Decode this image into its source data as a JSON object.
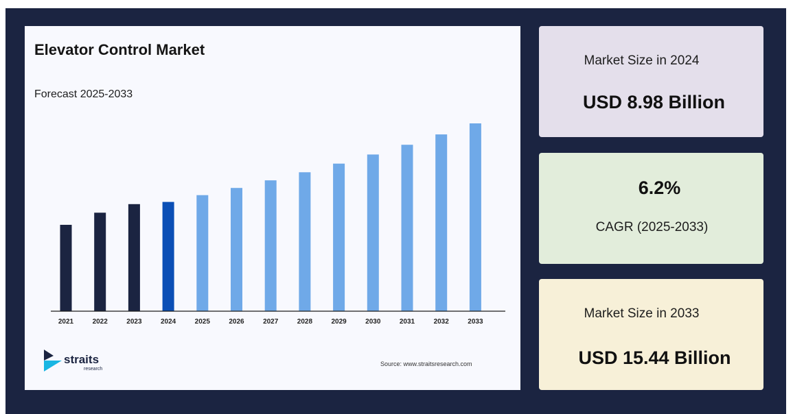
{
  "chart_data": {
    "type": "bar",
    "title": "Elevator Control Market",
    "subtitle": "Forecast 2025-2033",
    "categories": [
      "2021",
      "2022",
      "2023",
      "2024",
      "2025",
      "2026",
      "2027",
      "2028",
      "2029",
      "2030",
      "2031",
      "2032",
      "2033"
    ],
    "values": [
      7.1,
      8.1,
      8.8,
      8.98,
      9.54,
      10.13,
      10.76,
      11.42,
      12.13,
      12.88,
      13.68,
      14.53,
      15.44
    ],
    "historical_color": "#1b2441",
    "current_color": "#0b4fb6",
    "forecast_color": "#6fa9e8",
    "ylim": [
      0,
      15.44
    ],
    "grid": false
  },
  "branding": {
    "logo_text": "straits",
    "logo_sub": "research",
    "source": "Source: www.straitsresearch.com"
  },
  "cards": {
    "size_2024_label": "Market Size in 2024",
    "size_2024_value": "USD 8.98 Billion",
    "cagr_value": "6.2%",
    "cagr_label": "CAGR (2025-2033)",
    "size_2033_label": "Market Size in 2033",
    "size_2033_value": "USD 15.44 Billion"
  },
  "colors": {
    "frame": "#1b2441",
    "card_1": "#e4dfeb",
    "card_2": "#e2eddb",
    "card_3": "#f7f0d8",
    "logo_cyan": "#19b6e3",
    "logo_navy": "#1b2441"
  }
}
